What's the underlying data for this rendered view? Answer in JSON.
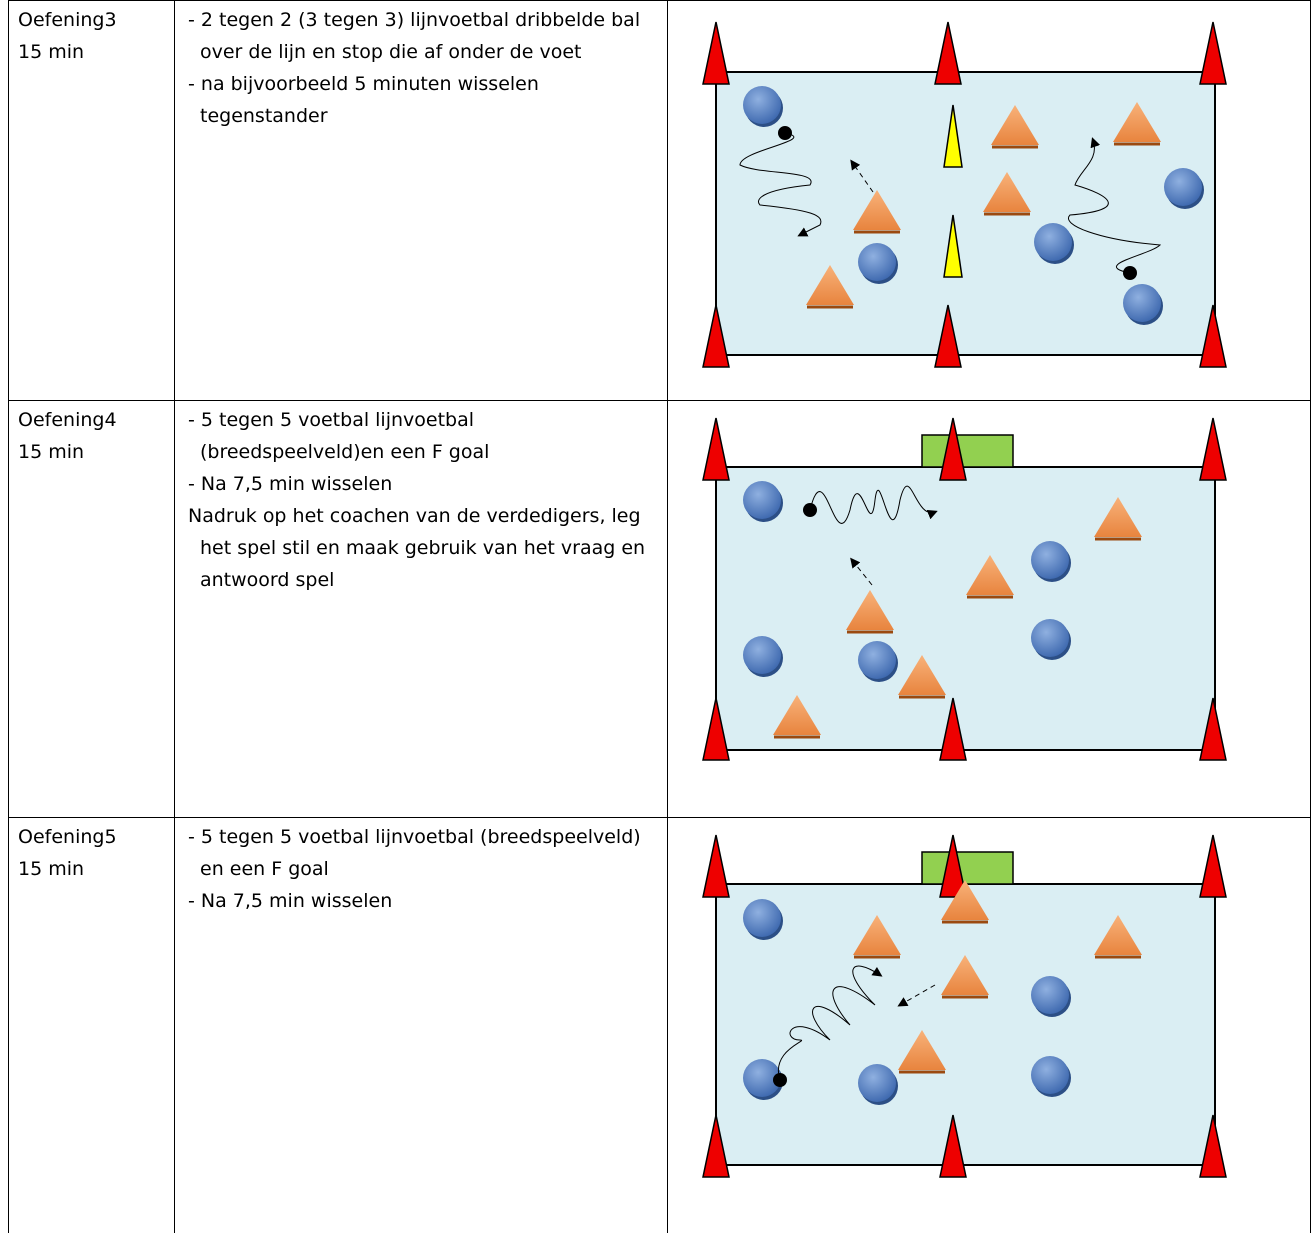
{
  "table": {
    "rows": [
      {
        "exercise": "Oefening3",
        "duration": "15 min",
        "lines": [
          "- 2 tegen 2 (3 tegen 3) lijnvoetbal dribbelde bal over de lijn en stop die af onder de voet",
          "- na bijvoorbeeld 5 minuten wisselen tegenstander"
        ]
      },
      {
        "exercise": "Oefening4",
        "duration": "15 min",
        "lines": [
          "- 5 tegen 5 voetbal lijnvoetbal (breedspeelveld)en een F goal",
          "- Na 7,5 min wisselen",
          "Nadruk op het coachen van de verdedigers, leg het spel stil en maak gebruik van het vraag en antwoord spel"
        ]
      },
      {
        "exercise": "Oefening5",
        "duration": "15 min",
        "lines": [
          "- 5 tegen 5 voetbal lijnvoetbal (breedspeelveld) en een F goal",
          "- Na 7,5 min wisselen"
        ]
      }
    ]
  }
}
